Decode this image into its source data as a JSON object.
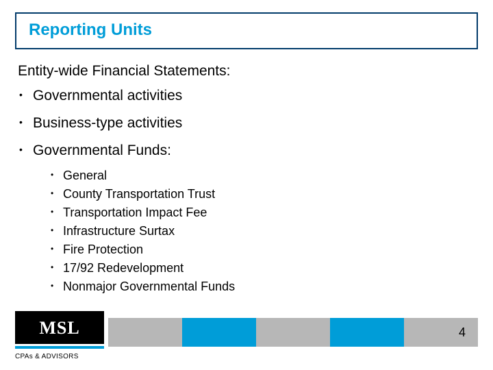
{
  "colors": {
    "accent": "#009dd8",
    "title_border": "#003a6a",
    "text": "#000000",
    "footer_blocks": [
      "#b7b7b7",
      "#009dd8",
      "#b7b7b7",
      "#009dd8",
      "#b7b7b7"
    ]
  },
  "title": "Reporting Units",
  "subtitle": "Entity-wide Financial Statements:",
  "bullets": [
    {
      "text": "Governmental activities",
      "sub": []
    },
    {
      "text": "Business-type activities",
      "sub": []
    },
    {
      "text": "Governmental Funds:",
      "sub": [
        "General",
        "County Transportation Trust",
        "Transportation Impact Fee",
        "Infrastructure Surtax",
        "Fire Protection",
        "17/92 Redevelopment",
        "Nonmajor Governmental Funds"
      ]
    }
  ],
  "logo": {
    "text": "MSL",
    "tagline": "CPAs & ADVISORS"
  },
  "page_number": "4"
}
